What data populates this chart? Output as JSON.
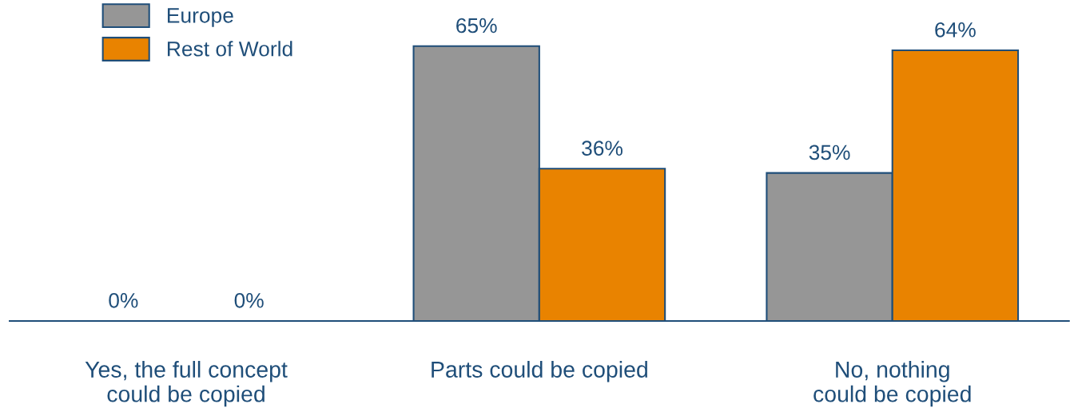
{
  "chart_data": {
    "type": "bar",
    "categories": [
      "Yes, the full concept\ncould be copied",
      "Parts could be copied",
      "No, nothing\ncould be copied"
    ],
    "series": [
      {
        "name": "Europe",
        "color": "#969696",
        "values": [
          0,
          65,
          35
        ],
        "value_labels": [
          "0%",
          "65%",
          "35%"
        ]
      },
      {
        "name": "Rest of World",
        "color": "#e98300",
        "values": [
          0,
          36,
          64
        ],
        "value_labels": [
          "0%",
          "36%",
          "64%"
        ]
      }
    ],
    "legend": "top left",
    "grid": false
  }
}
